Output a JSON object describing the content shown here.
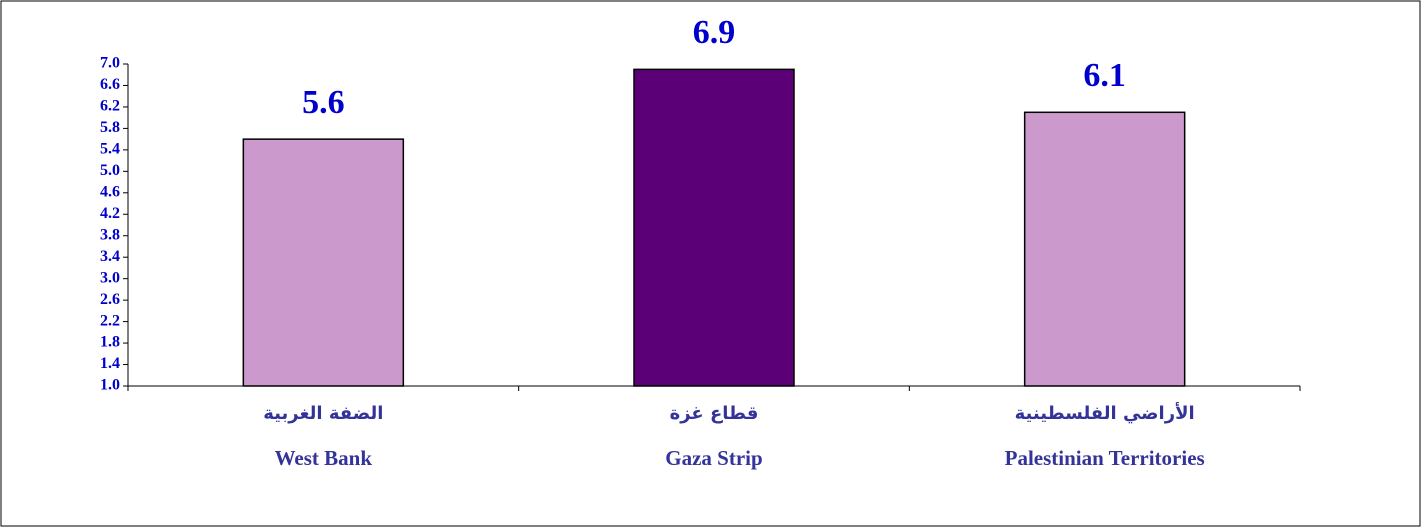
{
  "chart_data": {
    "type": "bar",
    "categories": [
      "West Bank",
      "Gaza Strip",
      "Palestinian Territories"
    ],
    "categories_arabic": [
      "الضفة الغربية",
      "قطاع غزة",
      "الأراضي الفلسطينية"
    ],
    "values": [
      5.6,
      6.9,
      6.1
    ],
    "colors": [
      "#cc99cc",
      "#5c0078",
      "#cc99cc"
    ],
    "ylim": [
      1.0,
      7.0
    ],
    "yticks": [
      {
        "value": 1.0,
        "label": "1.0"
      },
      1.4,
      1.8,
      2.2,
      2.6,
      {
        "value": 3.0,
        "label": "3.0"
      },
      3.4,
      3.8,
      4.2,
      4.6,
      {
        "value": 5.0,
        "label": "5.0"
      },
      5.4,
      5.8,
      6.2,
      6.6,
      {
        "value": 7.0,
        "label": "7.0"
      }
    ],
    "grid": false
  }
}
